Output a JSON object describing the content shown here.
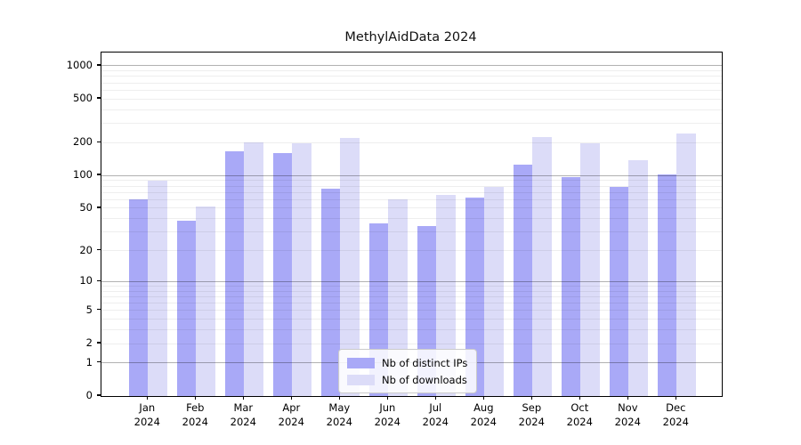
{
  "title": "MethylAidData 2024",
  "chart_data": {
    "type": "bar",
    "scale": "log1p",
    "title": "MethylAidData 2024",
    "xlabel": "",
    "ylabel": "",
    "year": "2024",
    "categories": [
      "Jan",
      "Feb",
      "Mar",
      "Apr",
      "May",
      "Jun",
      "Jul",
      "Aug",
      "Sep",
      "Oct",
      "Nov",
      "Dec"
    ],
    "series": [
      {
        "name": "Nb of distinct IPs",
        "color": "#a9a9f7",
        "values": [
          60,
          38,
          166,
          159,
          76,
          36,
          34,
          63,
          126,
          97,
          79,
          102
        ]
      },
      {
        "name": "Nb of downloads",
        "color": "#dcdcf8",
        "values": [
          90,
          52,
          201,
          198,
          222,
          60,
          66,
          78,
          223,
          198,
          139,
          242
        ]
      }
    ],
    "y_ticks": [
      0,
      1,
      2,
      5,
      10,
      20,
      50,
      100,
      200,
      500,
      1000
    ],
    "y_tick_labels": [
      "0",
      "1",
      "2",
      "5",
      "10",
      "20",
      "50",
      "100",
      "200",
      "500",
      "1000"
    ],
    "ylim": [
      0,
      1320
    ],
    "grid": {
      "major_color": "rgba(0,0,0,0.30)",
      "minor_color": "rgba(0,0,0,0.065)",
      "grid_on": true
    },
    "legend_position": "lower-center"
  },
  "legend": {
    "items": [
      "Nb of distinct IPs",
      "Nb of downloads"
    ]
  }
}
